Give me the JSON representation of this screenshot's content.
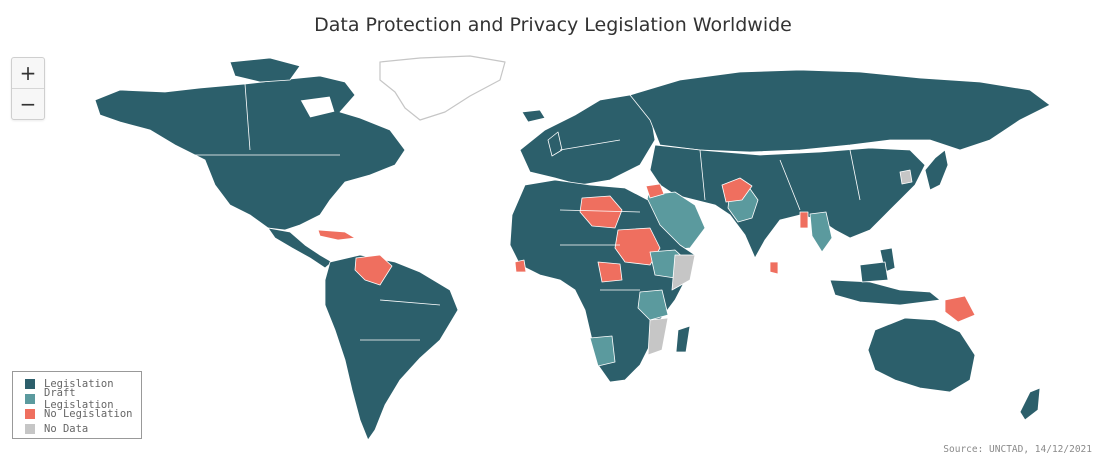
{
  "title": "Data Protection and Privacy Legislation Worldwide",
  "zoom": {
    "in_label": "+",
    "out_label": "−"
  },
  "legend": [
    {
      "label": "Legislation",
      "color": "#2c5f6b"
    },
    {
      "label": "Draft Legislation",
      "color": "#5b9a9e"
    },
    {
      "label": "No Legislation",
      "color": "#ef6f5f"
    },
    {
      "label": "No Data",
      "color": "#c6c6c6"
    }
  ],
  "source": "Source: UNCTAD, 14/12/2021",
  "colors": {
    "legislation": "#2c5f6b",
    "draft": "#5b9a9e",
    "none": "#ef6f5f",
    "nodata": "#c6c6c6",
    "border": "#ffffff"
  }
}
